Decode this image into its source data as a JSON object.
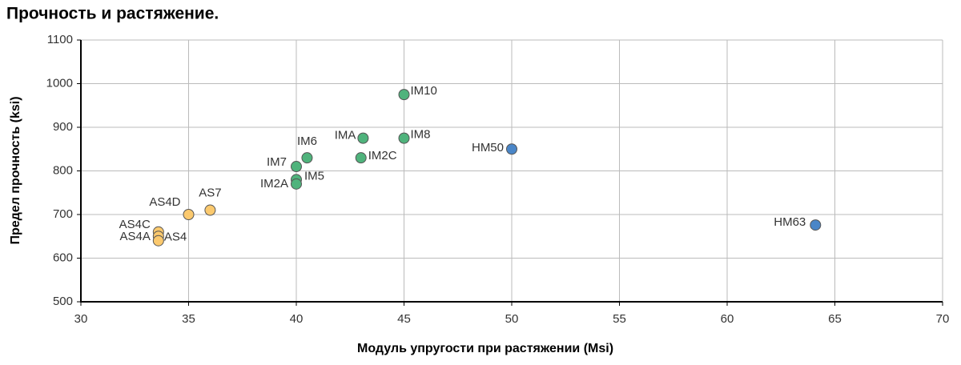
{
  "chart_data": {
    "type": "scatter",
    "title": "Прочность и растяжение.",
    "xlabel": "Модуль упругости при растяжении (Msi)",
    "ylabel": "Предел прочность (ksi)",
    "xlim": [
      30,
      70
    ],
    "xticks": [
      30,
      35,
      40,
      45,
      50,
      55,
      60,
      65,
      70
    ],
    "ylim": [
      500,
      1100
    ],
    "yticks": [
      500,
      600,
      700,
      800,
      900,
      1000,
      1100
    ],
    "grid": true,
    "series": [
      {
        "color": "#fbc96e",
        "x": [
          35,
          36,
          33.6,
          33.6,
          33.6
        ],
        "values": [
          700,
          710,
          660,
          650,
          640
        ],
        "labels": [
          "AS4D",
          "AS7",
          "AS4C",
          "AS4A",
          "AS4"
        ]
      },
      {
        "color": "#4fb37c",
        "x": [
          45,
          45,
          43.1,
          43,
          40.5,
          40,
          40,
          40
        ],
        "values": [
          975,
          875,
          875,
          830,
          830,
          810,
          780,
          770
        ],
        "labels": [
          "IM10",
          "IM8",
          "IMA",
          "IM2C",
          "IM6",
          "IM7",
          "IM5",
          "IM2A"
        ]
      },
      {
        "color": "#4a86c8",
        "x": [
          50,
          64.1
        ],
        "values": [
          850,
          676
        ],
        "labels": [
          "HM50",
          "HM63"
        ]
      }
    ]
  }
}
